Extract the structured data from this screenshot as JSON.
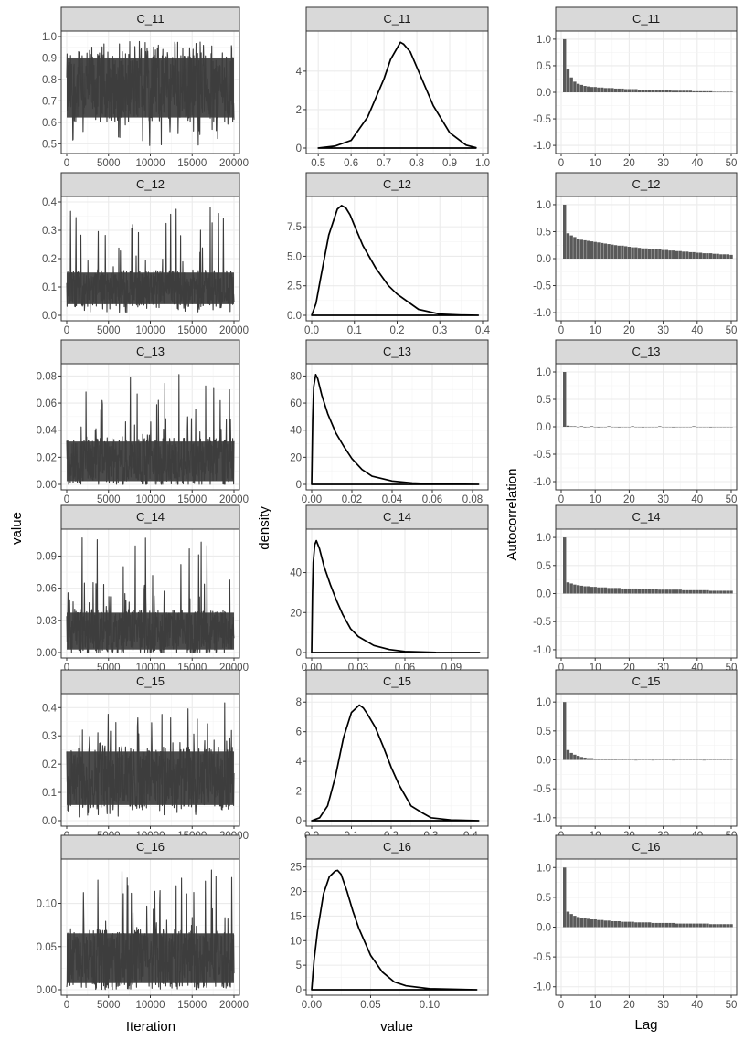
{
  "figure": {
    "col_labels": {
      "trace": {
        "x": "Iteration",
        "y": "value"
      },
      "density": {
        "x": "value",
        "y": "density"
      },
      "acf": {
        "x": "Lag",
        "y": "Autocorrelation"
      }
    },
    "row_titles": [
      "C_11",
      "C_12",
      "C_13",
      "C_14",
      "C_15",
      "C_16"
    ]
  },
  "chart_data": [
    {
      "type": "line",
      "panel": "trace",
      "title": "C_11",
      "xlabel": "Iteration",
      "ylabel": "value",
      "xlim": [
        0,
        20000
      ],
      "ylim": [
        0.48,
        1.0
      ],
      "xticks": [
        "0",
        "5000",
        "10000",
        "15000",
        "20000"
      ],
      "yticks": [
        "0.5",
        "0.6",
        "0.7",
        "0.8",
        "0.9",
        "1.0"
      ],
      "ytick_values": [
        0.5,
        0.6,
        0.7,
        0.8,
        0.9,
        1.0
      ],
      "band": {
        "low": 0.6,
        "high": 0.92,
        "min": 0.49,
        "max": 0.98
      }
    },
    {
      "type": "line",
      "panel": "density",
      "title": "C_11",
      "xlabel": "value",
      "ylabel": "density",
      "xlim": [
        0.48,
        1.0
      ],
      "ylim": [
        0,
        5.8
      ],
      "xticks": [
        "0.5",
        "0.6",
        "0.7",
        "0.8",
        "0.9",
        "1.0"
      ],
      "xtick_values": [
        0.5,
        0.6,
        0.7,
        0.8,
        0.9,
        1.0
      ],
      "yticks": [
        "0",
        "2",
        "4"
      ],
      "ytick_values": [
        0,
        2,
        4
      ],
      "x": [
        0.5,
        0.55,
        0.6,
        0.65,
        0.7,
        0.72,
        0.74,
        0.75,
        0.76,
        0.78,
        0.8,
        0.85,
        0.9,
        0.95,
        0.98
      ],
      "y": [
        0.0,
        0.1,
        0.4,
        1.6,
        3.6,
        4.6,
        5.2,
        5.5,
        5.4,
        5.0,
        4.2,
        2.2,
        0.8,
        0.15,
        0.02
      ]
    },
    {
      "type": "bar",
      "panel": "acf",
      "title": "C_11",
      "xlabel": "Lag",
      "ylabel": "Autocorrelation",
      "xlim": [
        0,
        50
      ],
      "ylim": [
        -1.05,
        1.05
      ],
      "xticks": [
        "0",
        "10",
        "20",
        "30",
        "40",
        "50"
      ],
      "xtick_values": [
        0,
        10,
        20,
        30,
        40,
        50
      ],
      "yticks": [
        "1.0",
        "0.5",
        "0.0",
        "-0.5",
        "-1.0"
      ],
      "ytick_values": [
        1.0,
        0.5,
        0.0,
        -0.5,
        -1.0
      ],
      "values": [
        1.0,
        0.43,
        0.28,
        0.2,
        0.16,
        0.14,
        0.12,
        0.11,
        0.1,
        0.1,
        0.09,
        0.09,
        0.08,
        0.08,
        0.08,
        0.07,
        0.07,
        0.07,
        0.06,
        0.06,
        0.06,
        0.06,
        0.05,
        0.05,
        0.05,
        0.05,
        0.05,
        0.04,
        0.04,
        0.04,
        0.04,
        0.04,
        0.03,
        0.03,
        0.03,
        0.03,
        0.03,
        0.03,
        0.02,
        0.02,
        0.02,
        0.02,
        0.02,
        0.02,
        0.01,
        0.01,
        0.01,
        0.01,
        0.01,
        0.01
      ]
    },
    {
      "type": "line",
      "panel": "trace",
      "title": "C_12",
      "xlabel": "Iteration",
      "ylabel": "value",
      "xlim": [
        0,
        20000
      ],
      "ylim": [
        0,
        0.4
      ],
      "xticks": [
        "0",
        "5000",
        "10000",
        "15000",
        "20000"
      ],
      "yticks": [
        "0.0",
        "0.1",
        "0.2",
        "0.3",
        "0.4"
      ],
      "ytick_values": [
        0.0,
        0.1,
        0.2,
        0.3,
        0.4
      ],
      "band": {
        "low": 0.03,
        "high": 0.16,
        "min": 0.01,
        "max": 0.39
      }
    },
    {
      "type": "line",
      "panel": "density",
      "title": "C_12",
      "xlabel": "value",
      "ylabel": "density",
      "xlim": [
        0,
        0.4
      ],
      "ylim": [
        0,
        9.6
      ],
      "xticks": [
        "0.0",
        "0.1",
        "0.2",
        "0.3",
        "0.4"
      ],
      "xtick_values": [
        0.0,
        0.1,
        0.2,
        0.3,
        0.4
      ],
      "yticks": [
        "0.0",
        "2.5",
        "5.0",
        "7.5"
      ],
      "ytick_values": [
        0.0,
        2.5,
        5.0,
        7.5
      ],
      "x": [
        0.0,
        0.01,
        0.02,
        0.04,
        0.06,
        0.07,
        0.08,
        0.09,
        0.1,
        0.12,
        0.15,
        0.18,
        0.2,
        0.25,
        0.3,
        0.35,
        0.39
      ],
      "y": [
        0.0,
        1.0,
        3.0,
        6.8,
        9.0,
        9.3,
        9.1,
        8.5,
        7.6,
        5.9,
        4.0,
        2.5,
        1.8,
        0.5,
        0.1,
        0.02,
        0.0
      ]
    },
    {
      "type": "bar",
      "panel": "acf",
      "title": "C_12",
      "xlabel": "Lag",
      "ylabel": "Autocorrelation",
      "xlim": [
        0,
        50
      ],
      "ylim": [
        -1.05,
        1.05
      ],
      "xticks": [
        "0",
        "10",
        "20",
        "30",
        "40",
        "50"
      ],
      "xtick_values": [
        0,
        10,
        20,
        30,
        40,
        50
      ],
      "yticks": [
        "1.0",
        "0.5",
        "0.0",
        "-0.5",
        "-1.0"
      ],
      "ytick_values": [
        1.0,
        0.5,
        0.0,
        -0.5,
        -1.0
      ],
      "values": [
        1.0,
        0.47,
        0.43,
        0.4,
        0.37,
        0.35,
        0.34,
        0.33,
        0.32,
        0.31,
        0.3,
        0.29,
        0.28,
        0.27,
        0.26,
        0.25,
        0.24,
        0.24,
        0.23,
        0.22,
        0.21,
        0.21,
        0.2,
        0.19,
        0.19,
        0.18,
        0.18,
        0.17,
        0.17,
        0.16,
        0.16,
        0.15,
        0.15,
        0.14,
        0.14,
        0.13,
        0.13,
        0.12,
        0.12,
        0.11,
        0.11,
        0.1,
        0.1,
        0.1,
        0.09,
        0.09,
        0.08,
        0.08,
        0.08,
        0.07
      ]
    },
    {
      "type": "line",
      "panel": "trace",
      "title": "C_13",
      "xlabel": "Iteration",
      "ylabel": "value",
      "xlim": [
        0,
        20000
      ],
      "ylim": [
        0,
        0.085
      ],
      "xticks": [
        "0",
        "5000",
        "10000",
        "15000",
        "20000"
      ],
      "yticks": [
        "0.00",
        "0.02",
        "0.04",
        "0.06",
        "0.08"
      ],
      "ytick_values": [
        0.0,
        0.02,
        0.04,
        0.06,
        0.08
      ],
      "band": {
        "low": 0.0,
        "high": 0.034,
        "min": 0.0,
        "max": 0.083
      }
    },
    {
      "type": "line",
      "panel": "density",
      "title": "C_13",
      "xlabel": "value",
      "ylabel": "density",
      "xlim": [
        0,
        0.085
      ],
      "ylim": [
        0,
        85
      ],
      "xticks": [
        "0.00",
        "0.02",
        "0.04",
        "0.06",
        "0.08"
      ],
      "xtick_values": [
        0.0,
        0.02,
        0.04,
        0.06,
        0.08
      ],
      "yticks": [
        "0",
        "20",
        "40",
        "60",
        "80"
      ],
      "ytick_values": [
        0,
        20,
        40,
        60,
        80
      ],
      "x": [
        0.0,
        0.0005,
        0.001,
        0.002,
        0.003,
        0.005,
        0.008,
        0.012,
        0.016,
        0.02,
        0.025,
        0.03,
        0.04,
        0.05,
        0.06,
        0.083
      ],
      "y": [
        0.0,
        48,
        72,
        81,
        78,
        66,
        52,
        38,
        28,
        19,
        11,
        6,
        2.5,
        1,
        0.4,
        0.0
      ]
    },
    {
      "type": "bar",
      "panel": "acf",
      "title": "C_13",
      "xlabel": "Lag",
      "ylabel": "Autocorrelation",
      "xlim": [
        0,
        50
      ],
      "ylim": [
        -1.05,
        1.05
      ],
      "xticks": [
        "0",
        "10",
        "20",
        "30",
        "40",
        "50"
      ],
      "xtick_values": [
        0,
        10,
        20,
        30,
        40,
        50
      ],
      "yticks": [
        "1.0",
        "0.5",
        "0.0",
        "-0.5",
        "-1.0"
      ],
      "ytick_values": [
        1.0,
        0.5,
        0.0,
        -0.5,
        -1.0
      ],
      "values": [
        1.0,
        0.02,
        0.01,
        0.01,
        0.0,
        0.01,
        -0.01,
        0.0,
        0.01,
        0.0,
        -0.01,
        0.0,
        0.0,
        0.01,
        0.0,
        0.0,
        -0.01,
        0.0,
        0.0,
        0.0,
        0.01,
        0.0,
        0.0,
        -0.01,
        0.0,
        0.0,
        0.0,
        0.0,
        0.01,
        0.0,
        0.0,
        0.0,
        -0.01,
        0.0,
        0.0,
        0.0,
        0.0,
        0.0,
        0.01,
        0.0,
        0.0,
        0.0,
        0.0,
        -0.01,
        0.0,
        0.0,
        0.0,
        0.0,
        0.0,
        0.0
      ]
    },
    {
      "type": "line",
      "panel": "trace",
      "title": "C_14",
      "xlabel": "Iteration",
      "ylabel": "value",
      "xlim": [
        0,
        20000
      ],
      "ylim": [
        0,
        0.11
      ],
      "xticks": [
        "0",
        "5000",
        "10000",
        "15000",
        "20000"
      ],
      "yticks": [
        "0.00",
        "0.03",
        "0.06",
        "0.09"
      ],
      "ytick_values": [
        0.0,
        0.03,
        0.06,
        0.09
      ],
      "band": {
        "low": 0.0,
        "high": 0.04,
        "min": 0.0,
        "max": 0.107
      }
    },
    {
      "type": "line",
      "panel": "density",
      "title": "C_14",
      "xlabel": "value",
      "ylabel": "density",
      "xlim": [
        0,
        0.11
      ],
      "ylim": [
        0,
        59
      ],
      "xticks": [
        "0.00",
        "0.03",
        "0.06",
        "0.09"
      ],
      "xtick_values": [
        0.0,
        0.03,
        0.06,
        0.09
      ],
      "yticks": [
        "0",
        "20",
        "40"
      ],
      "ytick_values": [
        0,
        20,
        40
      ],
      "x": [
        0.0,
        0.0005,
        0.001,
        0.002,
        0.003,
        0.005,
        0.008,
        0.012,
        0.016,
        0.02,
        0.025,
        0.03,
        0.04,
        0.05,
        0.06,
        0.08,
        0.108
      ],
      "y": [
        0.0,
        30,
        45,
        54,
        56,
        52,
        43,
        34,
        26,
        19,
        12,
        8,
        3.5,
        1.5,
        0.5,
        0.1,
        0.0
      ]
    },
    {
      "type": "bar",
      "panel": "acf",
      "title": "C_14",
      "xlabel": "Lag",
      "ylabel": "Autocorrelation",
      "xlim": [
        0,
        50
      ],
      "ylim": [
        -1.05,
        1.05
      ],
      "xticks": [
        "0",
        "10",
        "20",
        "30",
        "40",
        "50"
      ],
      "xtick_values": [
        0,
        10,
        20,
        30,
        40,
        50
      ],
      "yticks": [
        "1.0",
        "0.5",
        "0.0",
        "-0.5",
        "-1.0"
      ],
      "ytick_values": [
        1.0,
        0.5,
        0.0,
        -0.5,
        -1.0
      ],
      "values": [
        1.0,
        0.2,
        0.18,
        0.16,
        0.15,
        0.14,
        0.13,
        0.13,
        0.12,
        0.12,
        0.11,
        0.11,
        0.11,
        0.1,
        0.1,
        0.1,
        0.1,
        0.09,
        0.09,
        0.09,
        0.09,
        0.09,
        0.08,
        0.08,
        0.08,
        0.08,
        0.08,
        0.08,
        0.07,
        0.07,
        0.07,
        0.07,
        0.07,
        0.07,
        0.07,
        0.06,
        0.06,
        0.06,
        0.06,
        0.06,
        0.06,
        0.06,
        0.06,
        0.05,
        0.05,
        0.05,
        0.05,
        0.05,
        0.05,
        0.05
      ]
    },
    {
      "type": "line",
      "panel": "trace",
      "title": "C_15",
      "xlabel": "Iteration",
      "ylabel": "value",
      "xlim": [
        0,
        20000
      ],
      "ylim": [
        0,
        0.43
      ],
      "xticks": [
        "0",
        "5000",
        "10000",
        "15000",
        "20000"
      ],
      "yticks": [
        "0.0",
        "0.1",
        "0.2",
        "0.3",
        "0.4"
      ],
      "ytick_values": [
        0.0,
        0.1,
        0.2,
        0.3,
        0.4
      ],
      "band": {
        "low": 0.04,
        "high": 0.26,
        "min": 0.01,
        "max": 0.42
      }
    },
    {
      "type": "line",
      "panel": "density",
      "title": "C_15",
      "xlabel": "value",
      "ylabel": "density",
      "xlim": [
        0,
        0.43
      ],
      "ylim": [
        0,
        8.2
      ],
      "xticks": [
        "0.0",
        "0.1",
        "0.2",
        "0.3",
        "0.4"
      ],
      "xtick_values": [
        0.0,
        0.1,
        0.2,
        0.3,
        0.4
      ],
      "yticks": [
        "0",
        "2",
        "4",
        "6",
        "8"
      ],
      "ytick_values": [
        0,
        2,
        4,
        6,
        8
      ],
      "x": [
        0.0,
        0.02,
        0.04,
        0.06,
        0.08,
        0.1,
        0.12,
        0.13,
        0.14,
        0.16,
        0.18,
        0.2,
        0.22,
        0.25,
        0.28,
        0.3,
        0.35,
        0.42
      ],
      "y": [
        0.0,
        0.2,
        1.0,
        3.0,
        5.6,
        7.3,
        7.8,
        7.6,
        7.2,
        6.3,
        5.0,
        3.6,
        2.4,
        1.0,
        0.5,
        0.2,
        0.05,
        0.0
      ]
    },
    {
      "type": "bar",
      "panel": "acf",
      "title": "C_15",
      "xlabel": "Lag",
      "ylabel": "Autocorrelation",
      "xlim": [
        0,
        50
      ],
      "ylim": [
        -1.05,
        1.05
      ],
      "xticks": [
        "0",
        "10",
        "20",
        "30",
        "40",
        "50"
      ],
      "xtick_values": [
        0,
        10,
        20,
        30,
        40,
        50
      ],
      "yticks": [
        "1.0",
        "0.5",
        "0.0",
        "-0.5",
        "-1.0"
      ],
      "ytick_values": [
        1.0,
        0.5,
        0.0,
        -0.5,
        -1.0
      ],
      "values": [
        1.0,
        0.17,
        0.12,
        0.09,
        0.07,
        0.05,
        0.04,
        0.03,
        0.03,
        0.02,
        0.02,
        0.02,
        0.01,
        0.01,
        0.01,
        0.01,
        0.0,
        0.01,
        0.0,
        0.0,
        0.0,
        -0.01,
        0.0,
        0.0,
        0.0,
        0.0,
        -0.01,
        0.0,
        0.0,
        0.0,
        0.0,
        0.0,
        -0.01,
        0.0,
        0.0,
        0.0,
        0.0,
        0.0,
        0.0,
        0.0,
        0.0,
        -0.01,
        0.0,
        0.0,
        0.0,
        0.0,
        0.0,
        0.0,
        0.0,
        0.0
      ]
    },
    {
      "type": "line",
      "panel": "trace",
      "title": "C_16",
      "xlabel": "Iteration",
      "ylabel": "value",
      "xlim": [
        0,
        20000
      ],
      "ylim": [
        0,
        0.145
      ],
      "xticks": [
        "0",
        "5000",
        "10000",
        "15000",
        "20000"
      ],
      "yticks": [
        "0.00",
        "0.05",
        "0.10"
      ],
      "ytick_values": [
        0.0,
        0.05,
        0.1
      ],
      "band": {
        "low": 0.003,
        "high": 0.07,
        "min": 0.0,
        "max": 0.14
      }
    },
    {
      "type": "line",
      "panel": "density",
      "title": "C_16",
      "xlabel": "value",
      "ylabel": "density",
      "xlim": [
        0,
        0.145
      ],
      "ylim": [
        0,
        25.5
      ],
      "xticks": [
        "0.00",
        "0.05",
        "0.10"
      ],
      "xtick_values": [
        0.0,
        0.05,
        0.1
      ],
      "yticks": [
        "0",
        "5",
        "10",
        "15",
        "20",
        "25"
      ],
      "ytick_values": [
        0,
        5,
        10,
        15,
        20,
        25
      ],
      "x": [
        0.0,
        0.002,
        0.005,
        0.01,
        0.015,
        0.02,
        0.022,
        0.025,
        0.03,
        0.035,
        0.04,
        0.05,
        0.06,
        0.07,
        0.08,
        0.1,
        0.14
      ],
      "y": [
        0.0,
        6,
        12,
        19.5,
        23,
        24.2,
        24.3,
        23.5,
        20,
        16,
        12.5,
        7,
        3.6,
        1.6,
        0.8,
        0.2,
        0.0
      ]
    },
    {
      "type": "bar",
      "panel": "acf",
      "title": "C_16",
      "xlabel": "Lag",
      "ylabel": "Autocorrelation",
      "xlim": [
        0,
        50
      ],
      "ylim": [
        -1.05,
        1.05
      ],
      "xticks": [
        "0",
        "10",
        "20",
        "30",
        "40",
        "50"
      ],
      "xtick_values": [
        0,
        10,
        20,
        30,
        40,
        50
      ],
      "yticks": [
        "1.0",
        "0.5",
        "0.0",
        "-0.5",
        "-1.0"
      ],
      "ytick_values": [
        1.0,
        0.5,
        0.0,
        -0.5,
        -1.0
      ],
      "values": [
        1.0,
        0.26,
        0.22,
        0.19,
        0.17,
        0.16,
        0.15,
        0.14,
        0.13,
        0.13,
        0.12,
        0.12,
        0.11,
        0.11,
        0.1,
        0.1,
        0.1,
        0.09,
        0.09,
        0.09,
        0.09,
        0.08,
        0.08,
        0.08,
        0.08,
        0.08,
        0.07,
        0.07,
        0.07,
        0.07,
        0.07,
        0.07,
        0.07,
        0.06,
        0.06,
        0.06,
        0.06,
        0.06,
        0.06,
        0.06,
        0.06,
        0.06,
        0.06,
        0.05,
        0.05,
        0.05,
        0.05,
        0.05,
        0.05,
        0.05
      ]
    }
  ]
}
